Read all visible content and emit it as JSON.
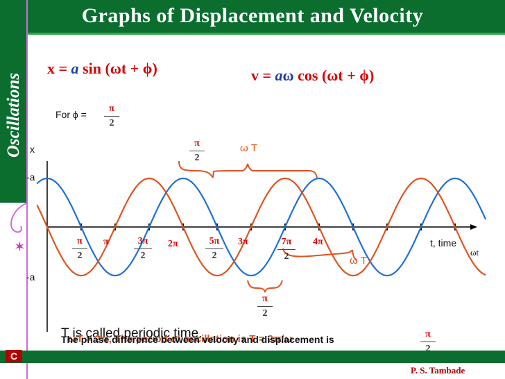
{
  "header": {
    "title": "Graphs of Displacement and Velocity"
  },
  "sidebar": {
    "label": "Oscillations",
    "footer_badge": "C"
  },
  "equations": {
    "displacement": {
      "lhs": "x =",
      "amp": "a",
      "rhs": "sin (ωt + ϕ)"
    },
    "velocity": {
      "lhs": "v =",
      "amp": "a",
      "omega": "ω",
      "rhs": "cos (ωt + ϕ)"
    }
  },
  "phase_note": {
    "label": "For ϕ =",
    "num": "π",
    "den": "2"
  },
  "axis_labels": {
    "x": "x",
    "a_pos": "-a",
    "a_neg": "-a",
    "time": "t, time",
    "wt": "ωt"
  },
  "ticks": {
    "pi_over_2": {
      "num": "π",
      "den": "2"
    },
    "pi": "π",
    "three_pi_over_2": {
      "num": "3π",
      "den": "2"
    },
    "two_pi": "2π",
    "five_pi_over_2": {
      "num": "5π",
      "den": "2"
    },
    "three_pi": "3π",
    "seven_pi_over_2": {
      "num": "7π",
      "den": "2"
    },
    "four_pi": "4π"
  },
  "annotations": {
    "top_phase": {
      "num": "π",
      "den": "2"
    },
    "top_period": "ω T",
    "bottom_period": "ω T",
    "bottom_phase": {
      "num": "π",
      "den": "2"
    }
  },
  "footer_text": {
    "line_a": "T is called periodic time.",
    "line_b": "The phase difference between velocity and displacement is",
    "line_c": "ωT = 2π, The period of oscillation is T = 2π/ω",
    "frac": {
      "num": "π",
      "den": "2"
    }
  },
  "credit": "P. S. Tambade",
  "colors": {
    "displacement": "#1f6fd6",
    "velocity": "#e0531f",
    "header_bg": "#0b6e2f",
    "accent": "#d60000"
  }
}
